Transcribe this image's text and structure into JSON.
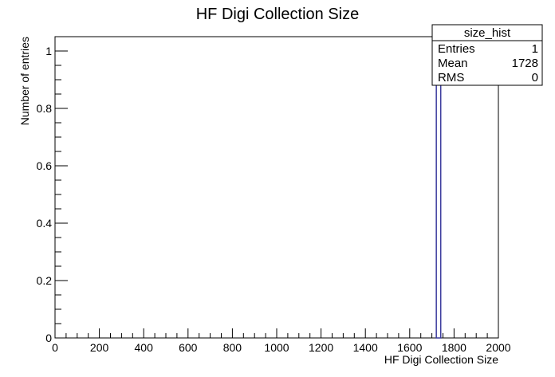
{
  "chart_data": {
    "type": "bar",
    "title": "HF Digi Collection Size",
    "xlabel": "HF Digi Collection Size",
    "ylabel": "Number of entries",
    "xlim": [
      0,
      2000
    ],
    "ylim": [
      0,
      1.05
    ],
    "x_ticks": [
      "0",
      "200",
      "400",
      "600",
      "800",
      "1000",
      "1200",
      "1400",
      "1600",
      "1800",
      "2000"
    ],
    "y_ticks": [
      "0",
      "0.2",
      "0.4",
      "0.6",
      "0.8",
      "1"
    ],
    "grid": false,
    "bins": [
      {
        "x_low": 1720,
        "x_high": 1740,
        "value": 1
      }
    ],
    "stats_box": {
      "name": "size_hist",
      "placement": "top-right",
      "rows": [
        {
          "label": "Entries",
          "value": "1"
        },
        {
          "label": "Mean",
          "value": "1728"
        },
        {
          "label": "RMS",
          "value": "0"
        }
      ]
    },
    "colors": {
      "bar": "#3b3b9e",
      "axis": "#000000"
    }
  }
}
